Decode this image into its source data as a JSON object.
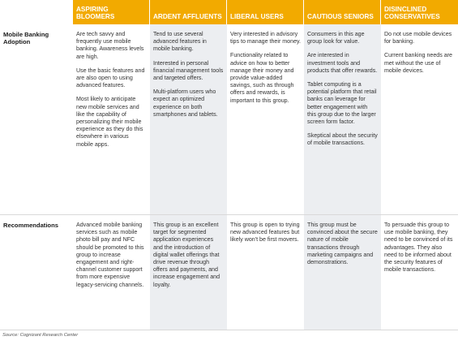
{
  "columns": [
    "ASPIRING BLOOMERS",
    "ARDENT AFFLUENTS",
    "LIBERAL USERS",
    "CAUTIOUS SENIORS",
    "DISINCLINED CONSERVATIVES"
  ],
  "rows": [
    {
      "label": "Mobile Banking Adoption",
      "cells": [
        [
          "Are tech savvy and frequently use mobile banking. Awareness levels are high.",
          "Use the basic features and are also open to using advanced features.",
          "Most likely to anticipate new mobile services and like the capability of personalizing their mobile experience as they do this elsewhere in various mobile apps."
        ],
        [
          "Tend to use several advanced features in mobile banking.",
          "Interested in personal financial management tools and targeted offers.",
          "Multi-platform users who expect an optimized experience on both smartphones and tablets."
        ],
        [
          "Very interested in advisory tips to manage their money.",
          "Functionality related to advice on how to better manage their money and provide value-added savings, such as through offers and rewards, is important to this group."
        ],
        [
          "Consumers in this age group look for value.",
          "Are interested in investment tools and products that offer rewards.",
          "Tablet computing is a potential platform that retail banks can leverage for better engagement with this group due to the larger screen form factor.",
          "Skeptical about the security of mobile transactions."
        ],
        [
          "Do not use mobile devices for banking.",
          "Current banking needs are met without the use of mobile devices."
        ]
      ]
    },
    {
      "label": "Recommendations",
      "cells": [
        [
          "Advanced mobile banking services such as mobile photo bill pay and NFC should be promoted to this group to increase engagement and right-channel customer support from more expensive legacy-servicing channels."
        ],
        [
          "This group is an excellent target for segmented application experiences and the introduction of digital wallet offerings that drive revenue through offers and payments, and increase engagement and loyalty."
        ],
        [
          "This group is open to trying new advanced features but likely won't be first movers."
        ],
        [
          "This group must be convinced about the secure nature of mobile transactions through marketing campaigns and demonstrations."
        ],
        [
          "To persuade this group to use mobile banking, they need to be convinced of its advantages. They also need to be informed about the security features of mobile transactions."
        ]
      ]
    }
  ],
  "source": "Source: Cognizant Research Center"
}
